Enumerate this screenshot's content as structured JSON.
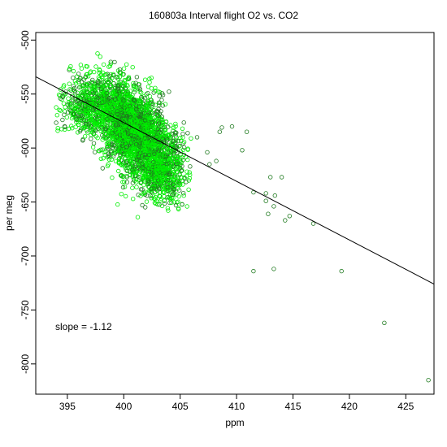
{
  "chart_data": {
    "type": "scatter",
    "title": "160803a   Interval flight O2 vs. CO2",
    "xlabel": "ppm",
    "ylabel": "per meg",
    "xlim": [
      392.2,
      427.5
    ],
    "ylim": [
      -828,
      -493
    ],
    "x_ticks": [
      395,
      400,
      405,
      410,
      415,
      420,
      425
    ],
    "y_ticks": [
      -500,
      -550,
      -600,
      -650,
      -700,
      -750,
      -800
    ],
    "grid": false,
    "legend": "none",
    "annotation": "slope =  -1.12",
    "regression_line": {
      "slope": -1.12,
      "points": [
        [
          392.2,
          -534
        ],
        [
          427.5,
          -726
        ]
      ]
    },
    "colors": {
      "dark_points": "#1f7a1f",
      "bright_points": "#00ee00",
      "line": "#000000"
    },
    "cluster": {
      "x_range": [
        394,
        406
      ],
      "y_range": [
        -668,
        -510
      ],
      "center": [
        401,
        -585
      ],
      "note": "dense cloud of several thousand overlapping points"
    },
    "outliers": [
      [
        406.5,
        -590
      ],
      [
        408.5,
        -585
      ],
      [
        408.7,
        -581
      ],
      [
        409.6,
        -580
      ],
      [
        410.5,
        -602
      ],
      [
        410.9,
        -585
      ],
      [
        407.4,
        -604
      ],
      [
        407.6,
        -615
      ],
      [
        408.2,
        -612
      ],
      [
        411.5,
        -641
      ],
      [
        412.6,
        -642
      ],
      [
        412.6,
        -649
      ],
      [
        413.0,
        -627
      ],
      [
        414.0,
        -627
      ],
      [
        413.4,
        -644
      ],
      [
        413.3,
        -654
      ],
      [
        412.8,
        -661
      ],
      [
        414.3,
        -667
      ],
      [
        414.7,
        -663
      ],
      [
        416.8,
        -670
      ],
      [
        411.5,
        -714
      ],
      [
        413.3,
        -712
      ],
      [
        419.3,
        -714
      ],
      [
        423.1,
        -762
      ],
      [
        427.0,
        -815
      ]
    ]
  }
}
